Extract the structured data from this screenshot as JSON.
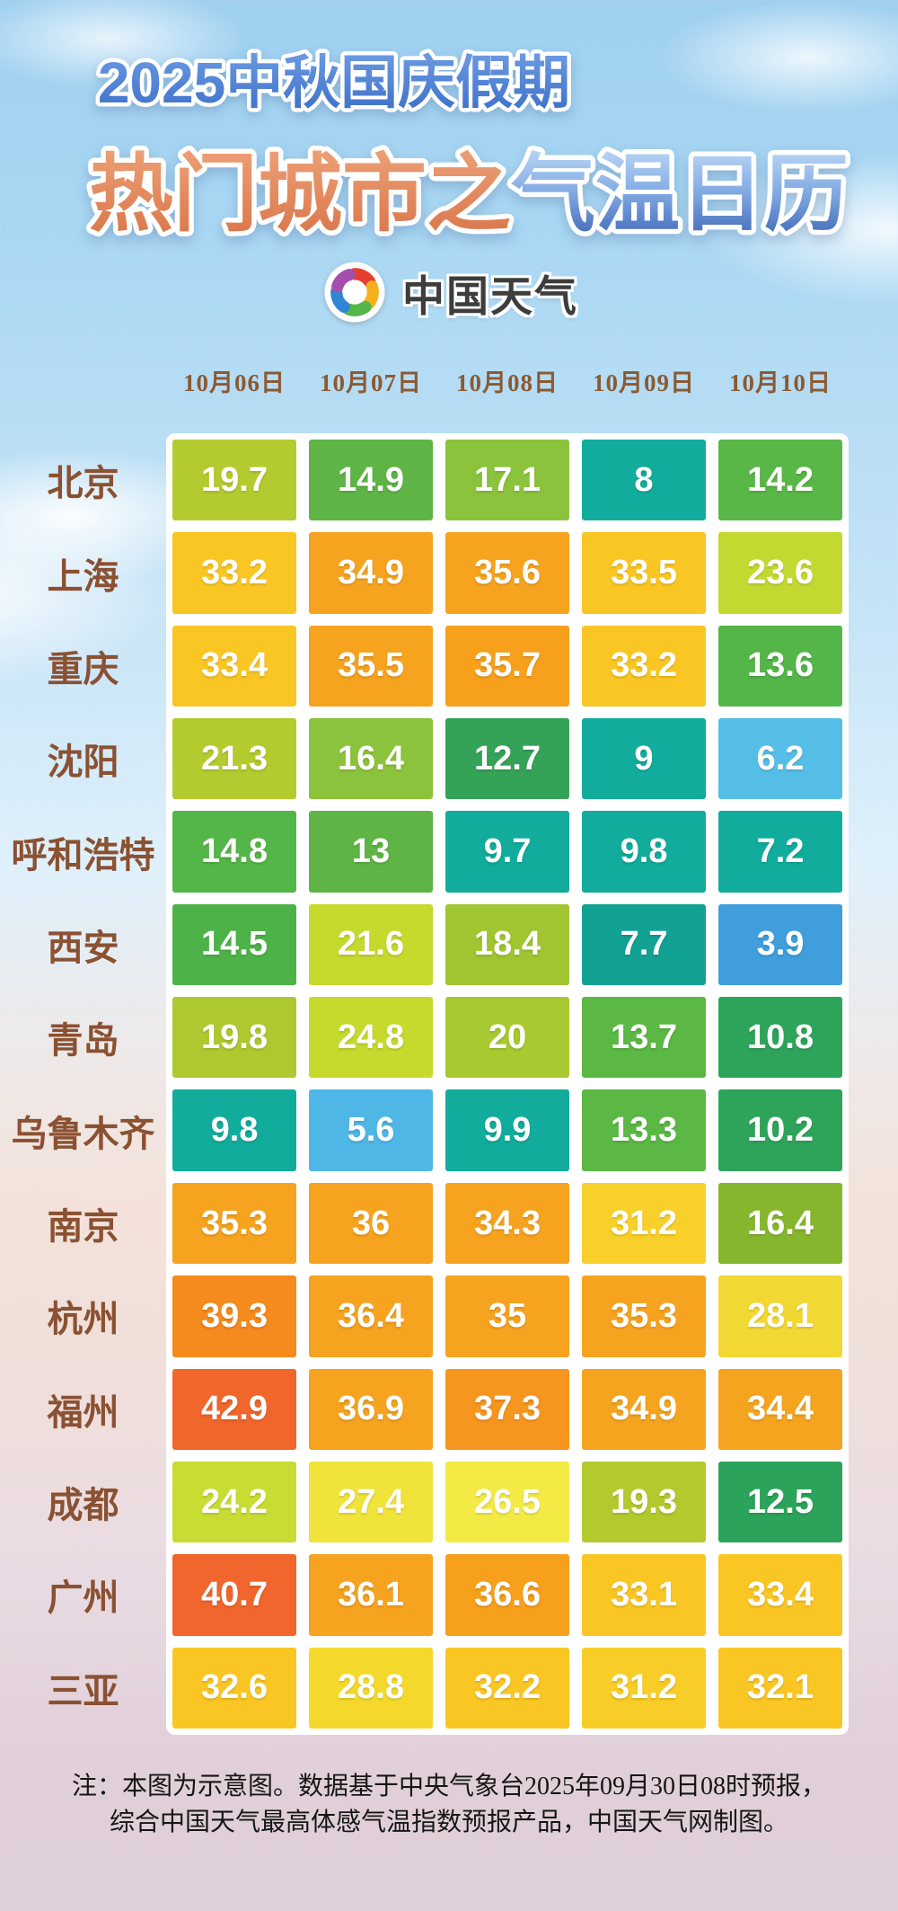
{
  "header": {
    "title_line1": "2025中秋国庆假期",
    "title_line2_orange": "热门城市之",
    "title_line2_blue": "气温日历",
    "logo_text": "中国天气",
    "logo_icon": "pinwheel-icon",
    "logo_colors": [
      "#e5402d",
      "#f6b01e",
      "#54b649",
      "#2f86d2",
      "#a44fae"
    ]
  },
  "dates": [
    "10月06日",
    "10月07日",
    "10月08日",
    "10月09日",
    "10月10日"
  ],
  "rows": [
    {
      "city": "北京",
      "cells": [
        {
          "temp": "19.7",
          "color": "#b3cb2f"
        },
        {
          "temp": "14.9",
          "color": "#5eb546"
        },
        {
          "temp": "17.1",
          "color": "#8cc33c"
        },
        {
          "temp": "8",
          "color": "#12ac9c"
        },
        {
          "temp": "14.2",
          "color": "#59b747"
        }
      ]
    },
    {
      "city": "上海",
      "cells": [
        {
          "temp": "33.2",
          "color": "#f9c624"
        },
        {
          "temp": "34.9",
          "color": "#f6a31f"
        },
        {
          "temp": "35.6",
          "color": "#f6a31f"
        },
        {
          "temp": "33.5",
          "color": "#f9c624"
        },
        {
          "temp": "23.6",
          "color": "#c3d931"
        }
      ]
    },
    {
      "city": "重庆",
      "cells": [
        {
          "temp": "33.4",
          "color": "#f9c624"
        },
        {
          "temp": "35.5",
          "color": "#f6a31f"
        },
        {
          "temp": "35.7",
          "color": "#f6a01c"
        },
        {
          "temp": "33.2",
          "color": "#f9c624"
        },
        {
          "temp": "13.6",
          "color": "#54b548"
        }
      ]
    },
    {
      "city": "沈阳",
      "cells": [
        {
          "temp": "21.3",
          "color": "#b3cb2f"
        },
        {
          "temp": "16.4",
          "color": "#8cc33c"
        },
        {
          "temp": "12.7",
          "color": "#35a357"
        },
        {
          "temp": "9",
          "color": "#12ac9c"
        },
        {
          "temp": "6.2",
          "color": "#55bee6"
        }
      ]
    },
    {
      "city": "呼和浩特",
      "cells": [
        {
          "temp": "14.8",
          "color": "#54b548"
        },
        {
          "temp": "13",
          "color": "#5eb546"
        },
        {
          "temp": "9.7",
          "color": "#12ac9c"
        },
        {
          "temp": "9.8",
          "color": "#12ac9c"
        },
        {
          "temp": "7.2",
          "color": "#12ac9c"
        }
      ]
    },
    {
      "city": "西安",
      "cells": [
        {
          "temp": "14.5",
          "color": "#4db349"
        },
        {
          "temp": "21.6",
          "color": "#c6d92d"
        },
        {
          "temp": "18.4",
          "color": "#a0c531"
        },
        {
          "temp": "7.7",
          "color": "#11a294"
        },
        {
          "temp": "3.9",
          "color": "#3f9edb"
        }
      ]
    },
    {
      "city": "青岛",
      "cells": [
        {
          "temp": "19.8",
          "color": "#adc92f"
        },
        {
          "temp": "24.8",
          "color": "#c6d92d"
        },
        {
          "temp": "20",
          "color": "#a8c92f"
        },
        {
          "temp": "13.7",
          "color": "#5bb844"
        },
        {
          "temp": "10.8",
          "color": "#2ea45b"
        }
      ]
    },
    {
      "city": "乌鲁木齐",
      "cells": [
        {
          "temp": "9.8",
          "color": "#12ac9c"
        },
        {
          "temp": "5.6",
          "color": "#4fb7e5"
        },
        {
          "temp": "9.9",
          "color": "#12ac9c"
        },
        {
          "temp": "13.3",
          "color": "#5bb844"
        },
        {
          "temp": "10.2",
          "color": "#2ea45b"
        }
      ]
    },
    {
      "city": "南京",
      "cells": [
        {
          "temp": "35.3",
          "color": "#f6a31f"
        },
        {
          "temp": "36",
          "color": "#f6a31f"
        },
        {
          "temp": "34.3",
          "color": "#f6a31f"
        },
        {
          "temp": "31.2",
          "color": "#f8d029"
        },
        {
          "temp": "16.4",
          "color": "#85b62e"
        }
      ]
    },
    {
      "city": "杭州",
      "cells": [
        {
          "temp": "39.3",
          "color": "#f58a1d"
        },
        {
          "temp": "36.4",
          "color": "#f6a31f"
        },
        {
          "temp": "35",
          "color": "#f6a31f"
        },
        {
          "temp": "35.3",
          "color": "#f6a31f"
        },
        {
          "temp": "28.1",
          "color": "#f2d832"
        }
      ]
    },
    {
      "city": "福州",
      "cells": [
        {
          "temp": "42.9",
          "color": "#f0662b"
        },
        {
          "temp": "36.9",
          "color": "#f6a31f"
        },
        {
          "temp": "37.3",
          "color": "#f6961e"
        },
        {
          "temp": "34.9",
          "color": "#f5a41f"
        },
        {
          "temp": "34.4",
          "color": "#f5a41f"
        }
      ]
    },
    {
      "city": "成都",
      "cells": [
        {
          "temp": "24.2",
          "color": "#c8dc33"
        },
        {
          "temp": "27.4",
          "color": "#f0e33a"
        },
        {
          "temp": "26.5",
          "color": "#f3ea45"
        },
        {
          "temp": "19.3",
          "color": "#b4c92e"
        },
        {
          "temp": "12.5",
          "color": "#2ba35a"
        }
      ]
    },
    {
      "city": "广州",
      "cells": [
        {
          "temp": "40.7",
          "color": "#f0662d"
        },
        {
          "temp": "36.1",
          "color": "#f6a31f"
        },
        {
          "temp": "36.6",
          "color": "#f6a01c"
        },
        {
          "temp": "33.1",
          "color": "#f9c624"
        },
        {
          "temp": "33.4",
          "color": "#f9c624"
        }
      ]
    },
    {
      "city": "三亚",
      "cells": [
        {
          "temp": "32.6",
          "color": "#f9c624"
        },
        {
          "temp": "28.8",
          "color": "#f4d92c"
        },
        {
          "temp": "32.2",
          "color": "#f9c624"
        },
        {
          "temp": "31.2",
          "color": "#f8cd27"
        },
        {
          "temp": "32.1",
          "color": "#f9c624"
        }
      ]
    }
  ],
  "footer": {
    "line1": "注：本图为示意图。数据基于中央气象台2025年09月30日08时预报，",
    "line2": "综合中国天气最高体感气温指数预报产品，中国天气网制图。"
  },
  "theme": {
    "title_blue": "#4a80d6",
    "title_orange": "#e0835a",
    "subtitle_blue_top": "#bcd7f4",
    "subtitle_blue_bottom": "#3d66b8",
    "date_brown": "#8b5a33",
    "city_brown": "#8a5132",
    "note_black": "#161616",
    "table_bg": "#ffffff"
  },
  "chart_data": {
    "type": "heatmap",
    "title": "2025中秋国庆假期 热门城市之气温日历",
    "columns": [
      "10月06日",
      "10月07日",
      "10月08日",
      "10月09日",
      "10月10日"
    ],
    "rows": [
      "北京",
      "上海",
      "重庆",
      "沈阳",
      "呼和浩特",
      "西安",
      "青岛",
      "乌鲁木齐",
      "南京",
      "杭州",
      "福州",
      "成都",
      "广州",
      "三亚"
    ],
    "values": [
      [
        19.7,
        14.9,
        17.1,
        8,
        14.2
      ],
      [
        33.2,
        34.9,
        35.6,
        33.5,
        23.6
      ],
      [
        33.4,
        35.5,
        35.7,
        33.2,
        13.6
      ],
      [
        21.3,
        16.4,
        12.7,
        9,
        6.2
      ],
      [
        14.8,
        13,
        9.7,
        9.8,
        7.2
      ],
      [
        14.5,
        21.6,
        18.4,
        7.7,
        3.9
      ],
      [
        19.8,
        24.8,
        20,
        13.7,
        10.8
      ],
      [
        9.8,
        5.6,
        9.9,
        13.3,
        10.2
      ],
      [
        35.3,
        36,
        34.3,
        31.2,
        16.4
      ],
      [
        39.3,
        36.4,
        35,
        35.3,
        28.1
      ],
      [
        42.9,
        36.9,
        37.3,
        34.9,
        34.4
      ],
      [
        24.2,
        27.4,
        26.5,
        19.3,
        12.5
      ],
      [
        40.7,
        36.1,
        36.6,
        33.1,
        33.4
      ],
      [
        32.6,
        28.8,
        32.2,
        31.2,
        32.1
      ]
    ],
    "color_scale": "blue(cold) → teal → green → yellow-green → yellow → orange → red-orange(hot)",
    "legend_position": "none",
    "grid": false
  }
}
